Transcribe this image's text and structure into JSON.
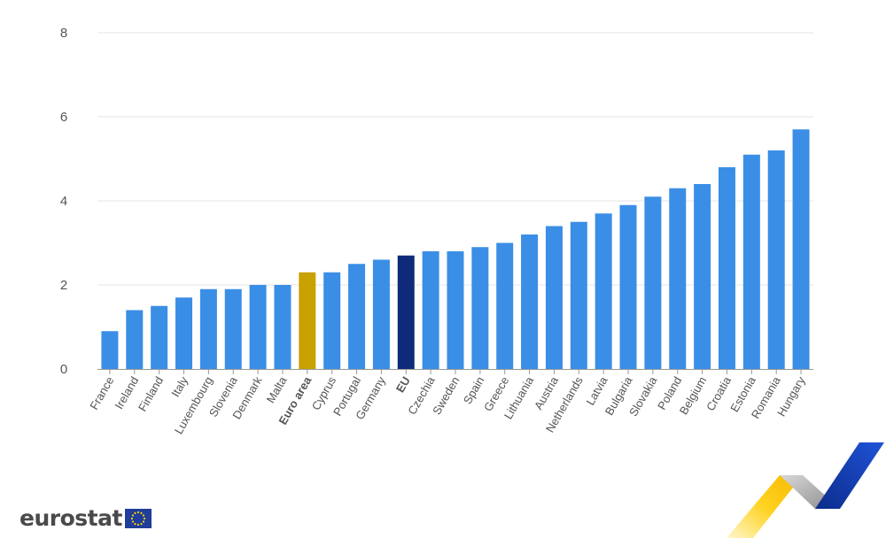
{
  "chart_data": {
    "type": "bar",
    "categories": [
      "France",
      "Ireland",
      "Finland",
      "Italy",
      "Luxembourg",
      "Slovenia",
      "Denmark",
      "Malta",
      "Euro area",
      "Cyprus",
      "Portugal",
      "Germany",
      "EU",
      "Czechia",
      "Sweden",
      "Spain",
      "Greece",
      "Lithuania",
      "Austria",
      "Netherlands",
      "Latvia",
      "Bulgaria",
      "Slovakia",
      "Poland",
      "Belgium",
      "Croatia",
      "Estonia",
      "Romania",
      "Hungary"
    ],
    "values": [
      0.9,
      1.4,
      1.5,
      1.7,
      1.9,
      1.9,
      2.0,
      2.0,
      2.3,
      2.3,
      2.5,
      2.6,
      2.7,
      2.8,
      2.8,
      2.9,
      3.0,
      3.2,
      3.4,
      3.5,
      3.7,
      3.9,
      4.1,
      4.3,
      4.4,
      4.8,
      5.1,
      5.2,
      5.7
    ],
    "highlight": {
      "Euro area": "#c9a100",
      "EU": "#102a7a"
    },
    "bold_categories": [
      "Euro area",
      "EU"
    ],
    "bar_color": "#3a8ee6",
    "ylim": [
      0,
      8
    ],
    "yticks": [
      0,
      2,
      4,
      6,
      8
    ],
    "grid": true,
    "title": "",
    "xlabel": "",
    "ylabel": ""
  },
  "logo": {
    "text": "eurostat"
  }
}
